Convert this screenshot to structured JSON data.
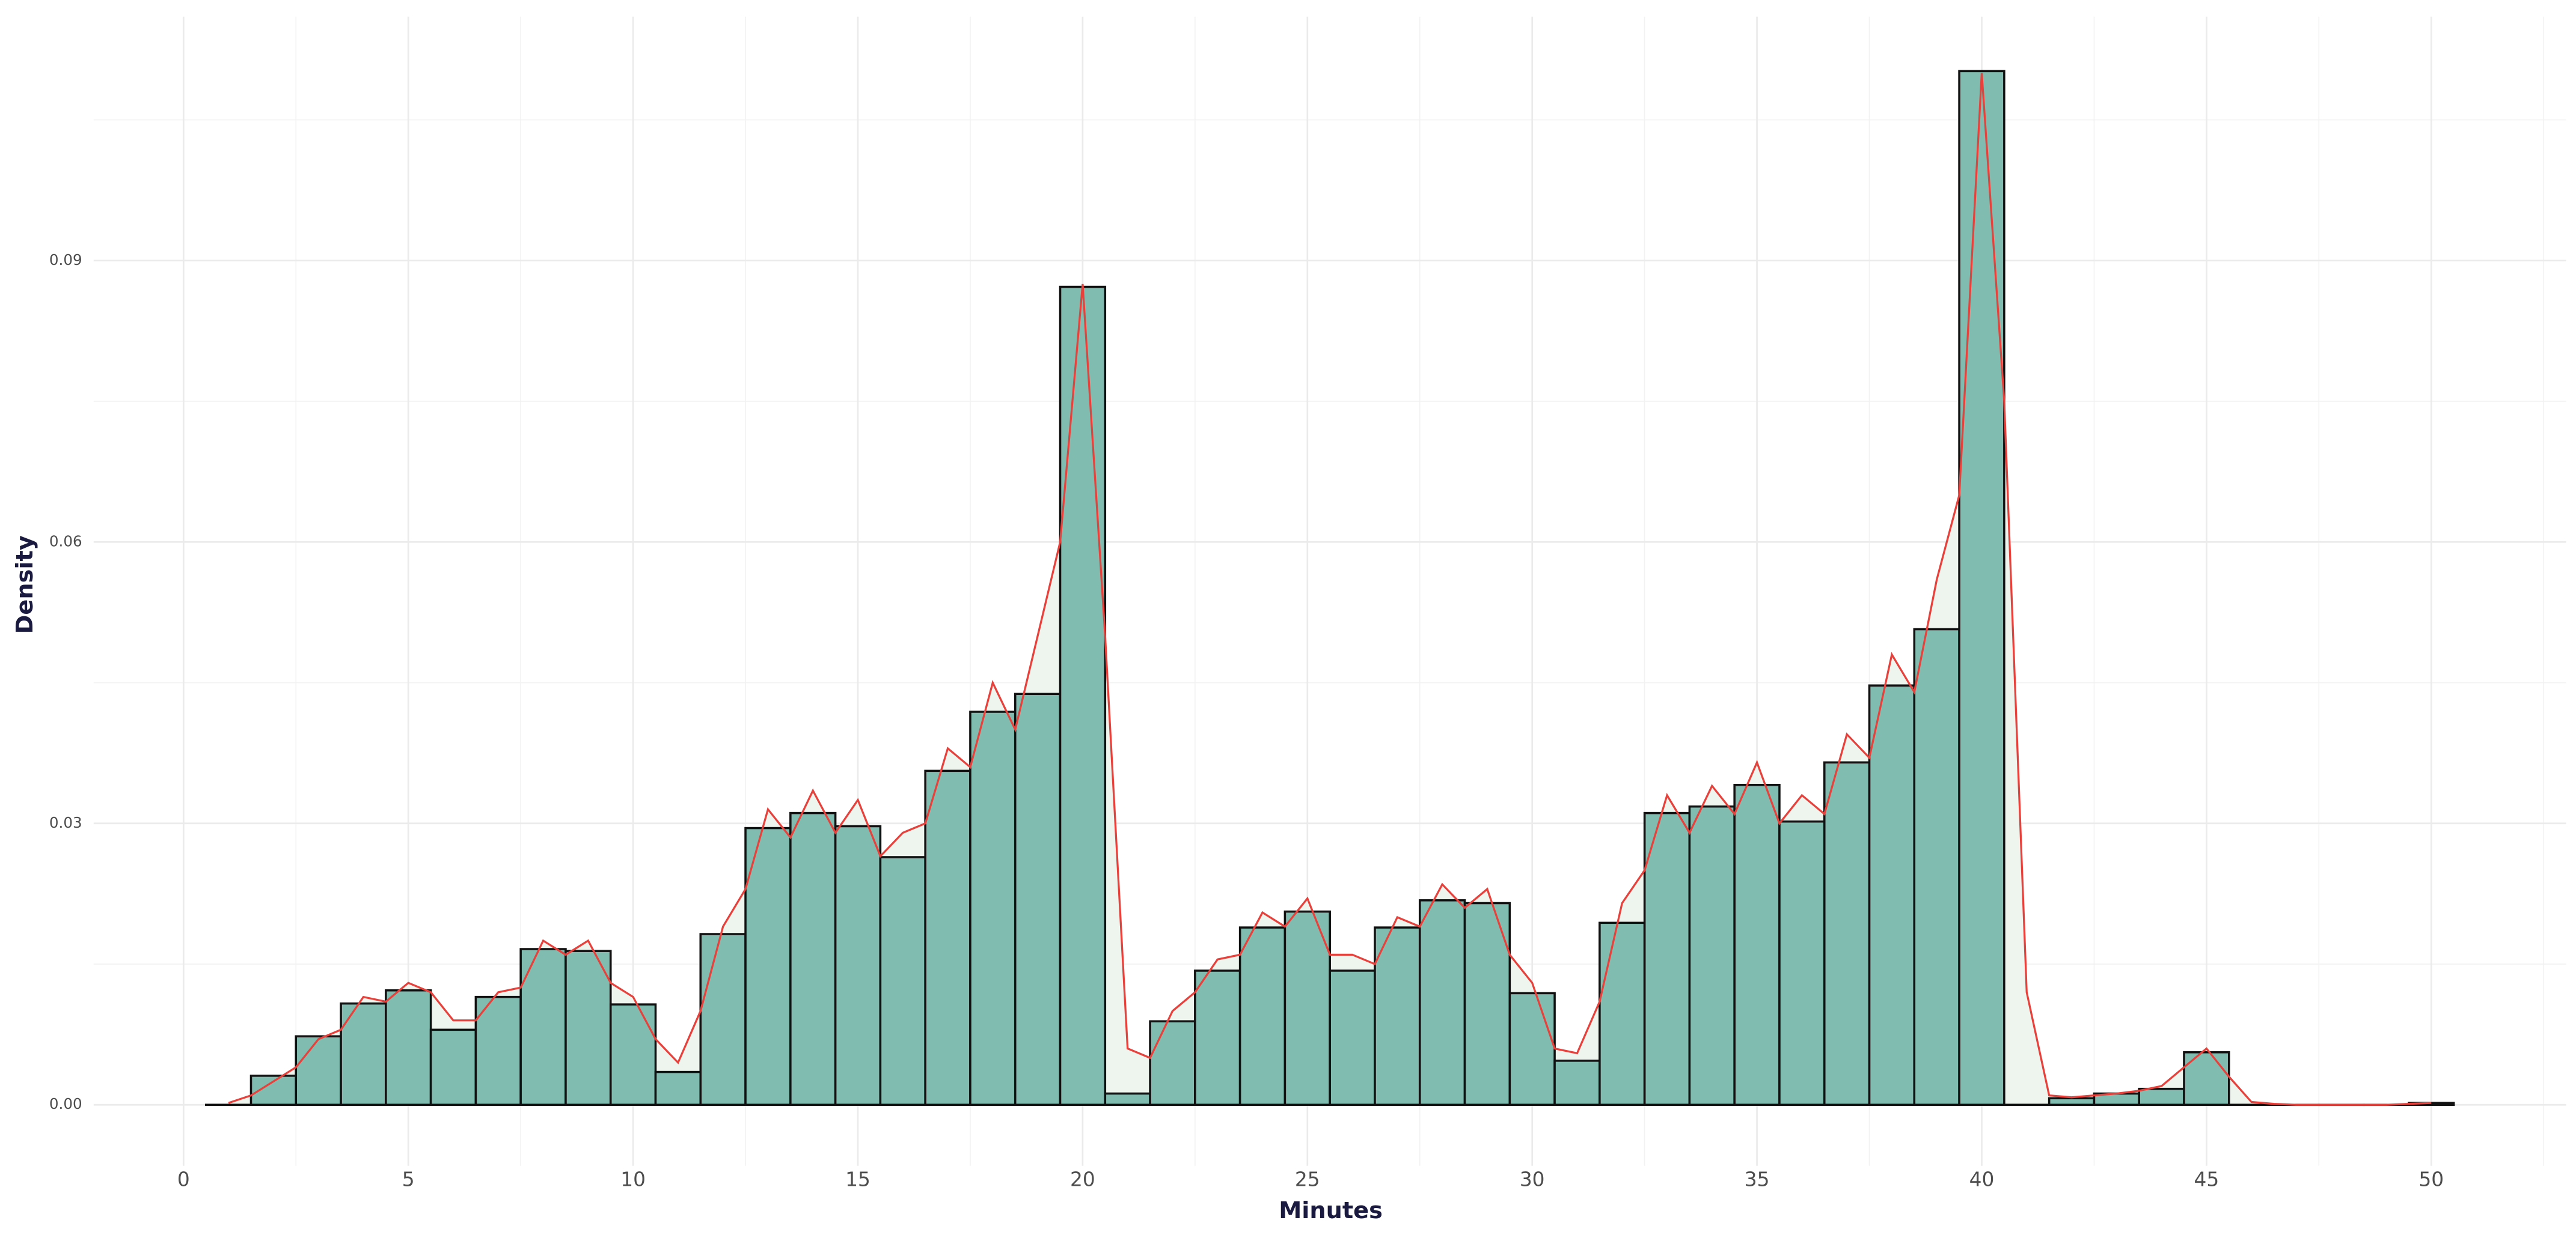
{
  "chart_data": {
    "type": "histogram",
    "x_label": "Minutes",
    "y_label": "Density",
    "bins": [
      0.5,
      1.5,
      2.5,
      3.5,
      4.5,
      5.5,
      6.5,
      7.5,
      8.5,
      9.5,
      10.5,
      11.5,
      12.5,
      13.5,
      14.5,
      15.5,
      16.5,
      17.5,
      18.5,
      19.5,
      20.5,
      21.5,
      22.5,
      23.5,
      24.5,
      25.5,
      26.5,
      27.5,
      28.5,
      29.5,
      30.5,
      31.5,
      32.5,
      33.5,
      34.5,
      35.5,
      36.5,
      37.5,
      38.5,
      39.5,
      40.5,
      41.5,
      42.5,
      43.5,
      44.5,
      45.5,
      46.5,
      47.5,
      48.5,
      49.5,
      50.5
    ],
    "values": [
      0,
      0.0031,
      0.0073,
      0.0108,
      0.0122,
      0.008,
      0.0115,
      0.0166,
      0.0164,
      0.0107,
      0.0035,
      0.0182,
      0.0295,
      0.0311,
      0.0297,
      0.0264,
      0.0356,
      0.0419,
      0.0438,
      0.0872,
      0.0012,
      0.0089,
      0.0143,
      0.0189,
      0.0206,
      0.0143,
      0.0189,
      0.0218,
      0.0215,
      0.0119,
      0.0047,
      0.0194,
      0.0311,
      0.0318,
      0.0341,
      0.0302,
      0.0365,
      0.0447,
      0.0507,
      0.1102,
      0,
      0.0007,
      0.0012,
      0.0017,
      0.0056,
      0,
      0,
      0,
      0,
      0.0002
    ],
    "color": "#80bdb0",
    "edge_color": "#111111",
    "density": {
      "color": "#e8413c",
      "fill": "#eef5ee",
      "x": [
        1,
        1.5,
        2,
        2.5,
        3,
        3.5,
        4,
        4.5,
        5,
        5.5,
        6,
        6.5,
        7,
        7.5,
        8,
        8.5,
        9,
        9.5,
        10,
        10.5,
        11,
        11.5,
        12,
        12.5,
        13,
        13.5,
        14,
        14.5,
        15,
        15.5,
        16,
        16.5,
        17,
        17.5,
        18,
        18.5,
        19,
        19.5,
        20,
        20.5,
        21,
        21.5,
        22,
        22.5,
        23,
        23.5,
        24,
        24.5,
        25,
        25.5,
        26,
        26.5,
        27,
        27.5,
        28,
        28.5,
        29,
        29.5,
        30,
        30.5,
        31,
        31.5,
        32,
        32.5,
        33,
        33.5,
        34,
        34.5,
        35,
        35.5,
        36,
        36.5,
        37,
        37.5,
        38,
        38.5,
        39,
        39.5,
        40,
        40.5,
        41,
        41.5,
        42,
        42.5,
        43,
        43.5,
        44,
        44.5,
        45,
        45.5,
        46,
        46.5,
        47,
        48,
        49,
        50
      ],
      "y": [
        0.0002,
        0.001,
        0.0025,
        0.004,
        0.007,
        0.008,
        0.0115,
        0.011,
        0.013,
        0.012,
        0.009,
        0.009,
        0.012,
        0.0125,
        0.0175,
        0.016,
        0.0175,
        0.013,
        0.0115,
        0.007,
        0.0045,
        0.01,
        0.019,
        0.023,
        0.0315,
        0.0285,
        0.0335,
        0.029,
        0.0325,
        0.0265,
        0.029,
        0.03,
        0.038,
        0.036,
        0.045,
        0.04,
        0.05,
        0.06,
        0.0875,
        0.05,
        0.006,
        0.005,
        0.01,
        0.012,
        0.0155,
        0.016,
        0.0205,
        0.019,
        0.022,
        0.016,
        0.016,
        0.015,
        0.02,
        0.019,
        0.0235,
        0.021,
        0.023,
        0.016,
        0.013,
        0.006,
        0.0055,
        0.011,
        0.0215,
        0.025,
        0.033,
        0.029,
        0.034,
        0.031,
        0.0365,
        0.03,
        0.033,
        0.031,
        0.0395,
        0.037,
        0.048,
        0.044,
        0.056,
        0.065,
        0.11,
        0.075,
        0.012,
        0.001,
        0.0008,
        0.001,
        0.0012,
        0.0015,
        0.002,
        0.004,
        0.006,
        0.003,
        0.0003,
        0.0001,
        0,
        0,
        0,
        0.0002
      ]
    },
    "xlim": [
      -2,
      53
    ],
    "ylim": [
      -0.0065,
      0.116
    ],
    "xticks": [
      0,
      5,
      10,
      15,
      20,
      25,
      30,
      35,
      40,
      45,
      50
    ],
    "yticks": [
      {
        "value": 0,
        "label": "0.00"
      },
      0.03,
      0.06,
      0.09
    ],
    "grid": true
  }
}
